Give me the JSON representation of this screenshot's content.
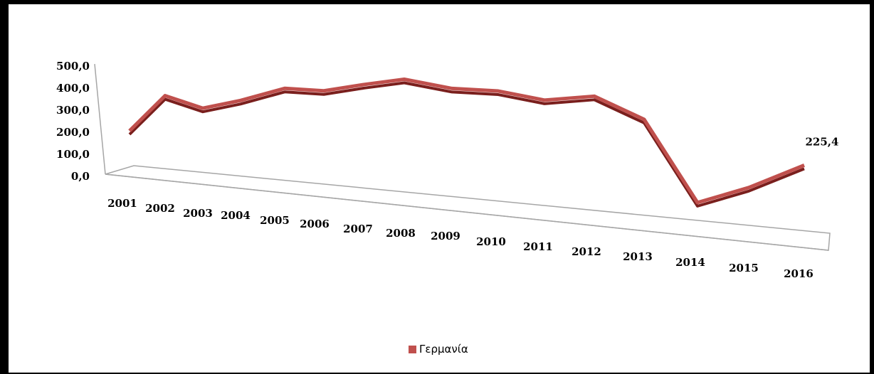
{
  "chart_data": {
    "type": "line",
    "style": "3d",
    "categories": [
      "2001",
      "2002",
      "2003",
      "2004",
      "2005",
      "2006",
      "2007",
      "2008",
      "2009",
      "2010",
      "2011",
      "2012",
      "2013",
      "2014",
      "2015",
      "2016"
    ],
    "series": [
      {
        "name": "Γερμανία",
        "color": "#c0504d",
        "values": [
          150,
          320,
          280,
          330,
          400,
          405,
          450,
          490,
          465,
          470,
          445,
          480,
          390,
          20,
          105,
          225.4
        ]
      }
    ],
    "y_ticks": [
      "0,0",
      "100,0",
      "200,0",
      "300,0",
      "400,0",
      "500,0"
    ],
    "ylim": [
      0,
      500
    ],
    "data_labels": [
      {
        "index": 15,
        "text": "225,4"
      }
    ],
    "legend_position": "bottom",
    "grid": false,
    "title": "",
    "xlabel": "",
    "ylabel": ""
  }
}
